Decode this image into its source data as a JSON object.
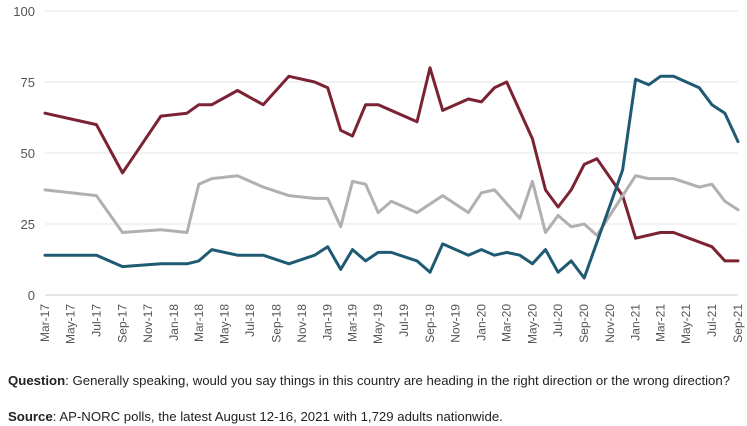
{
  "colors": {
    "red": "#7b2233",
    "gray": "#b0b0b0",
    "blue": "#1f5a73",
    "grid": "#e6e6e6",
    "axis": "#cccccc"
  },
  "chart_data": {
    "type": "line",
    "title": "",
    "xlabel": "",
    "ylabel": "",
    "ylim": [
      0,
      100
    ],
    "yticks": [
      0,
      25,
      50,
      75,
      100
    ],
    "grid": true,
    "xticks": [
      "Mar-17",
      "May-17",
      "Jul-17",
      "Sep-17",
      "Nov-17",
      "Jan-18",
      "Mar-18",
      "May-18",
      "Jul-18",
      "Sep-18",
      "Nov-18",
      "Jan-19",
      "Mar-19",
      "May-19",
      "Jul-19",
      "Sep-19",
      "Nov-19",
      "Jan-20",
      "Mar-20",
      "May-20",
      "Jul-20",
      "Sep-20",
      "Nov-20",
      "Jan-21",
      "Mar-21",
      "May-21",
      "Jul-21",
      "Sep-21"
    ],
    "x_dates": [
      "2017-03",
      "2017-07",
      "2017-09",
      "2017-12",
      "2018-02",
      "2018-03",
      "2018-04",
      "2018-06",
      "2018-08",
      "2018-10",
      "2018-11",
      "2018-12",
      "2019-01",
      "2019-03",
      "2019-04",
      "2019-05",
      "2019-06",
      "2019-07",
      "2019-08",
      "2019-09",
      "2019-10",
      "2019-12",
      "2020-01",
      "2020-02",
      "2020-03",
      "2020-04",
      "2020-05",
      "2020-06",
      "2020-07",
      "2020-08",
      "2020-09",
      "2020-10",
      "2020-11",
      "2020-12",
      "2021-01",
      "2021-02",
      "2021-03",
      "2021-04",
      "2021-06",
      "2021-07",
      "2021-08",
      "2021-09"
    ],
    "series": [
      {
        "name": "",
        "color": "#7b2233",
        "values": [
          64,
          60,
          43,
          63,
          64,
          67,
          67,
          72,
          67,
          77,
          75,
          73,
          58,
          56,
          67,
          67,
          61,
          80,
          65,
          69,
          68,
          73,
          75,
          55,
          37,
          31,
          37,
          46,
          48,
          35,
          20,
          22,
          22,
          17,
          12,
          12,
          null,
          null,
          null,
          null,
          null,
          null
        ]
      },
      {
        "name": "",
        "color": "#b0b0b0",
        "values": [
          37,
          35,
          22,
          23,
          22,
          39,
          41,
          42,
          38,
          35,
          34,
          34,
          24,
          40,
          39,
          29,
          33,
          29,
          35,
          29,
          36,
          37,
          27,
          40,
          22,
          28,
          24,
          25,
          21,
          42,
          41,
          41,
          38,
          39,
          33,
          30,
          null,
          null,
          null,
          null,
          null,
          null
        ]
      },
      {
        "name": "",
        "color": "#1f5a73",
        "values": [
          14,
          14,
          10,
          11,
          11,
          12,
          16,
          14,
          14,
          11,
          14,
          17,
          9,
          16,
          12,
          15,
          15,
          12,
          8,
          18,
          14,
          16,
          14,
          15,
          14,
          11,
          16,
          8,
          12,
          6,
          44,
          76,
          74,
          77,
          77,
          73,
          67,
          64,
          54,
          null,
          null,
          null
        ]
      }
    ],
    "series_dates": [
      [
        "2017-03",
        "2017-07",
        "2017-09",
        "2017-12",
        "2018-02",
        "2018-03",
        "2018-04",
        "2018-06",
        "2018-08",
        "2018-10",
        "2018-12",
        "2019-01",
        "2019-02",
        "2019-03",
        "2019-04",
        "2019-05",
        "2019-08",
        "2019-09",
        "2019-10",
        "2019-12",
        "2020-01",
        "2020-02",
        "2020-03",
        "2020-05",
        "2020-06",
        "2020-07",
        "2020-08",
        "2020-09",
        "2020-10",
        "2020-12",
        "2021-01",
        "2021-03",
        "2021-04",
        "2021-07",
        "2021-08",
        "2021-09"
      ],
      [
        "2017-03",
        "2017-07",
        "2017-09",
        "2017-12",
        "2018-02",
        "2018-03",
        "2018-04",
        "2018-06",
        "2018-08",
        "2018-10",
        "2018-12",
        "2019-01",
        "2019-02",
        "2019-03",
        "2019-04",
        "2019-05",
        "2019-06",
        "2019-08",
        "2019-10",
        "2019-12",
        "2020-01",
        "2020-02",
        "2020-04",
        "2020-05",
        "2020-06",
        "2020-07",
        "2020-08",
        "2020-09",
        "2020-10",
        "2021-01",
        "2021-02",
        "2021-04",
        "2021-06",
        "2021-07",
        "2021-08",
        "2021-09"
      ],
      [
        "2017-03",
        "2017-07",
        "2017-09",
        "2017-12",
        "2018-02",
        "2018-03",
        "2018-04",
        "2018-06",
        "2018-08",
        "2018-10",
        "2018-12",
        "2019-01",
        "2019-02",
        "2019-03",
        "2019-04",
        "2019-05",
        "2019-06",
        "2019-08",
        "2019-09",
        "2019-10",
        "2019-12",
        "2020-01",
        "2020-02",
        "2020-03",
        "2020-04",
        "2020-05",
        "2020-06",
        "2020-07",
        "2020-08",
        "2020-09",
        "2020-12",
        "2021-01",
        "2021-02",
        "2021-03",
        "2021-04",
        "2021-06",
        "2021-07",
        "2021-08",
        "2021-09"
      ]
    ]
  },
  "footnote": {
    "question_label": "Question",
    "question_text": ": Generally speaking, would you say things in this country are heading in the right direction or the wrong direction?",
    "source_label": "Source",
    "source_text": ": AP-NORC polls, the latest  August 12-16, 2021 with 1,729 adults nationwide."
  }
}
